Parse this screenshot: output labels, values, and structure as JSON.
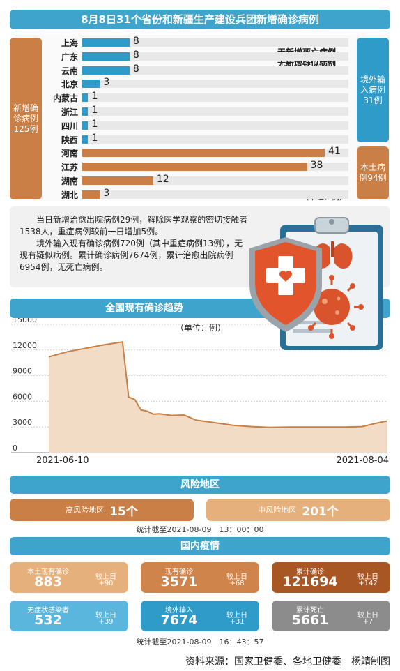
{
  "title": "8月8日31个省份和新疆生产建设兵团新增确诊病例",
  "left_box": {
    "label": "新增确诊病例125例"
  },
  "right_boxes": {
    "imported": "境外输入病例31例",
    "local": "本土病例94例"
  },
  "no_death_note": "无新增死亡病例",
  "no_suspect_note": "无新增疑似病例",
  "unit_note": "（单位：例）",
  "paragraphs": [
    "当日新增治愈出院病例29例，解除医学观察的密切接触者1538人，重症病例较前一日增加5例。",
    "境外输入现有确诊病例720例（其中重症病例13例），无现有疑似病例。累计确诊病例7674例，累计治愈出院病例6954例，无死亡病例。"
  ],
  "colors": {
    "imported": "#2e9bc8",
    "local": "#c97f45",
    "banner": "#3ea4cc"
  },
  "chart_data": [
    {
      "type": "bar",
      "orientation": "horizontal",
      "categories": [
        "上海",
        "广东",
        "云南",
        "北京",
        "内蒙古",
        "浙江",
        "四川",
        "陕西",
        "河南",
        "江苏",
        "湖南",
        "湖北"
      ],
      "values": [
        8,
        8,
        8,
        3,
        1,
        1,
        1,
        1,
        41,
        38,
        12,
        3
      ],
      "groups": [
        "imported",
        "imported",
        "imported",
        "imported",
        "imported",
        "imported",
        "imported",
        "imported",
        "local",
        "local",
        "local",
        "local"
      ],
      "xlim": [
        0,
        45
      ]
    },
    {
      "type": "area",
      "title": "全国现有确诊趋势",
      "unit": "（单位：例）",
      "y_ticks": [
        "15000",
        "12000",
        "9000",
        "6000",
        "3000",
        "0"
      ],
      "ylim": [
        0,
        15000
      ],
      "x_labels": [
        "2021-06-10",
        "2021-08-04"
      ],
      "x_range": [
        "2021-06-10",
        "2021-08-04"
      ],
      "x": [
        "2021-06-10",
        "2021-06-13",
        "2021-06-16",
        "2021-06-19",
        "2021-06-22",
        "2021-06-23",
        "2021-06-24",
        "2021-06-25",
        "2021-06-26",
        "2021-06-27",
        "2021-06-28",
        "2021-06-30",
        "2021-07-02",
        "2021-07-04",
        "2021-07-06",
        "2021-07-08",
        "2021-07-10",
        "2021-07-13",
        "2021-07-16",
        "2021-07-19",
        "2021-07-22",
        "2021-07-25",
        "2021-07-28",
        "2021-07-31",
        "2021-08-02",
        "2021-08-04"
      ],
      "values": [
        11200,
        11800,
        12200,
        12600,
        12950,
        6500,
        6200,
        5000,
        4850,
        4500,
        4550,
        4350,
        4400,
        3800,
        3600,
        3400,
        3200,
        3050,
        2950,
        3000,
        3000,
        3000,
        3000,
        3050,
        3400,
        3700
      ]
    }
  ],
  "risk": {
    "title": "风险地区",
    "high_label": "高风险地区",
    "high_count": "15个",
    "mid_label": "中风险地区",
    "mid_count": "201个",
    "timestamp": "统计截至2021-08-09　13：00：00"
  },
  "domestic": {
    "title": "国内疫情",
    "compare_label": "较上日",
    "cards": [
      {
        "title": "本土现有确诊",
        "value": "883",
        "delta": "+90",
        "color": "#e5b07c"
      },
      {
        "title": "现有确诊",
        "value": "3571",
        "delta": "+68",
        "color": "#cf844c"
      },
      {
        "title": "累计确诊",
        "value": "121694",
        "delta": "+142",
        "color": "#a85624"
      },
      {
        "title": "无症状感染者",
        "value": "532",
        "delta": "+39",
        "color": "#5ab6dd"
      },
      {
        "title": "境外输入",
        "value": "7674",
        "delta": "+31",
        "color": "#2e9bc8"
      },
      {
        "title": "累计死亡",
        "value": "5661",
        "delta": "+7",
        "color": "#8c8c8c"
      }
    ],
    "timestamp": "统计截至2021-08-09　16：43：57"
  },
  "source": "资料来源：国家卫健委、各地卫健委　杨靖制图"
}
